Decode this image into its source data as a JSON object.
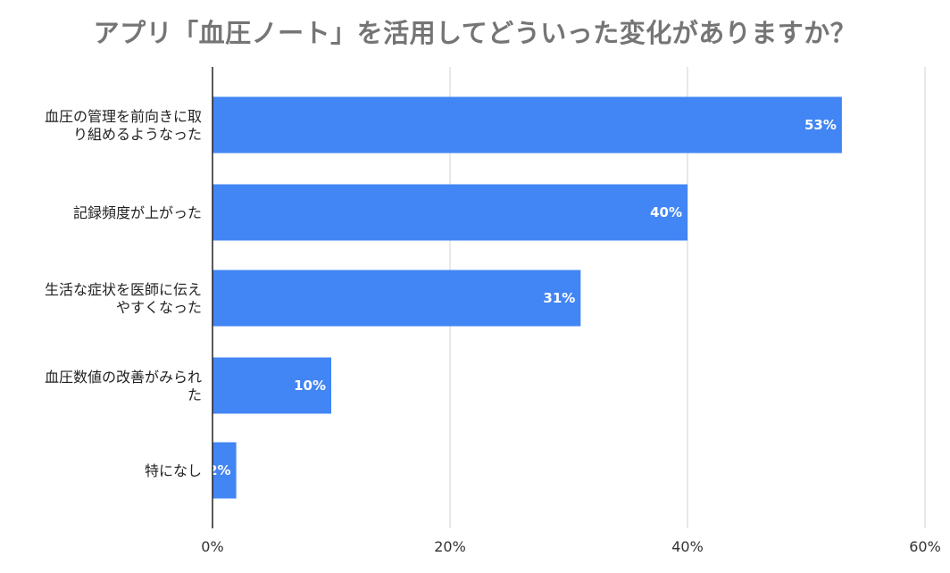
{
  "chart_data": {
    "type": "bar",
    "orientation": "horizontal",
    "title": "アプリ「血圧ノート」を活用してどういった変化がありますか？",
    "categories": [
      [
        "血圧の管理を前向きに取",
        "り組めるようなった"
      ],
      [
        "記録頻度が上がった"
      ],
      [
        "生活な症状を医師に伝え",
        "やすくなった"
      ],
      [
        "血圧数値の改善がみられ",
        "た"
      ],
      [
        "特になし"
      ]
    ],
    "values": [
      53,
      40,
      31,
      10,
      2
    ],
    "data_labels": [
      "53%",
      "40%",
      "31%",
      "10%",
      "2%"
    ],
    "xlim": [
      0,
      60
    ],
    "xticks": [
      0,
      20,
      40,
      60
    ],
    "xtick_labels": [
      "0%",
      "20%",
      "40%",
      "60%"
    ],
    "grid": true,
    "bar_color": "#4285f4"
  }
}
